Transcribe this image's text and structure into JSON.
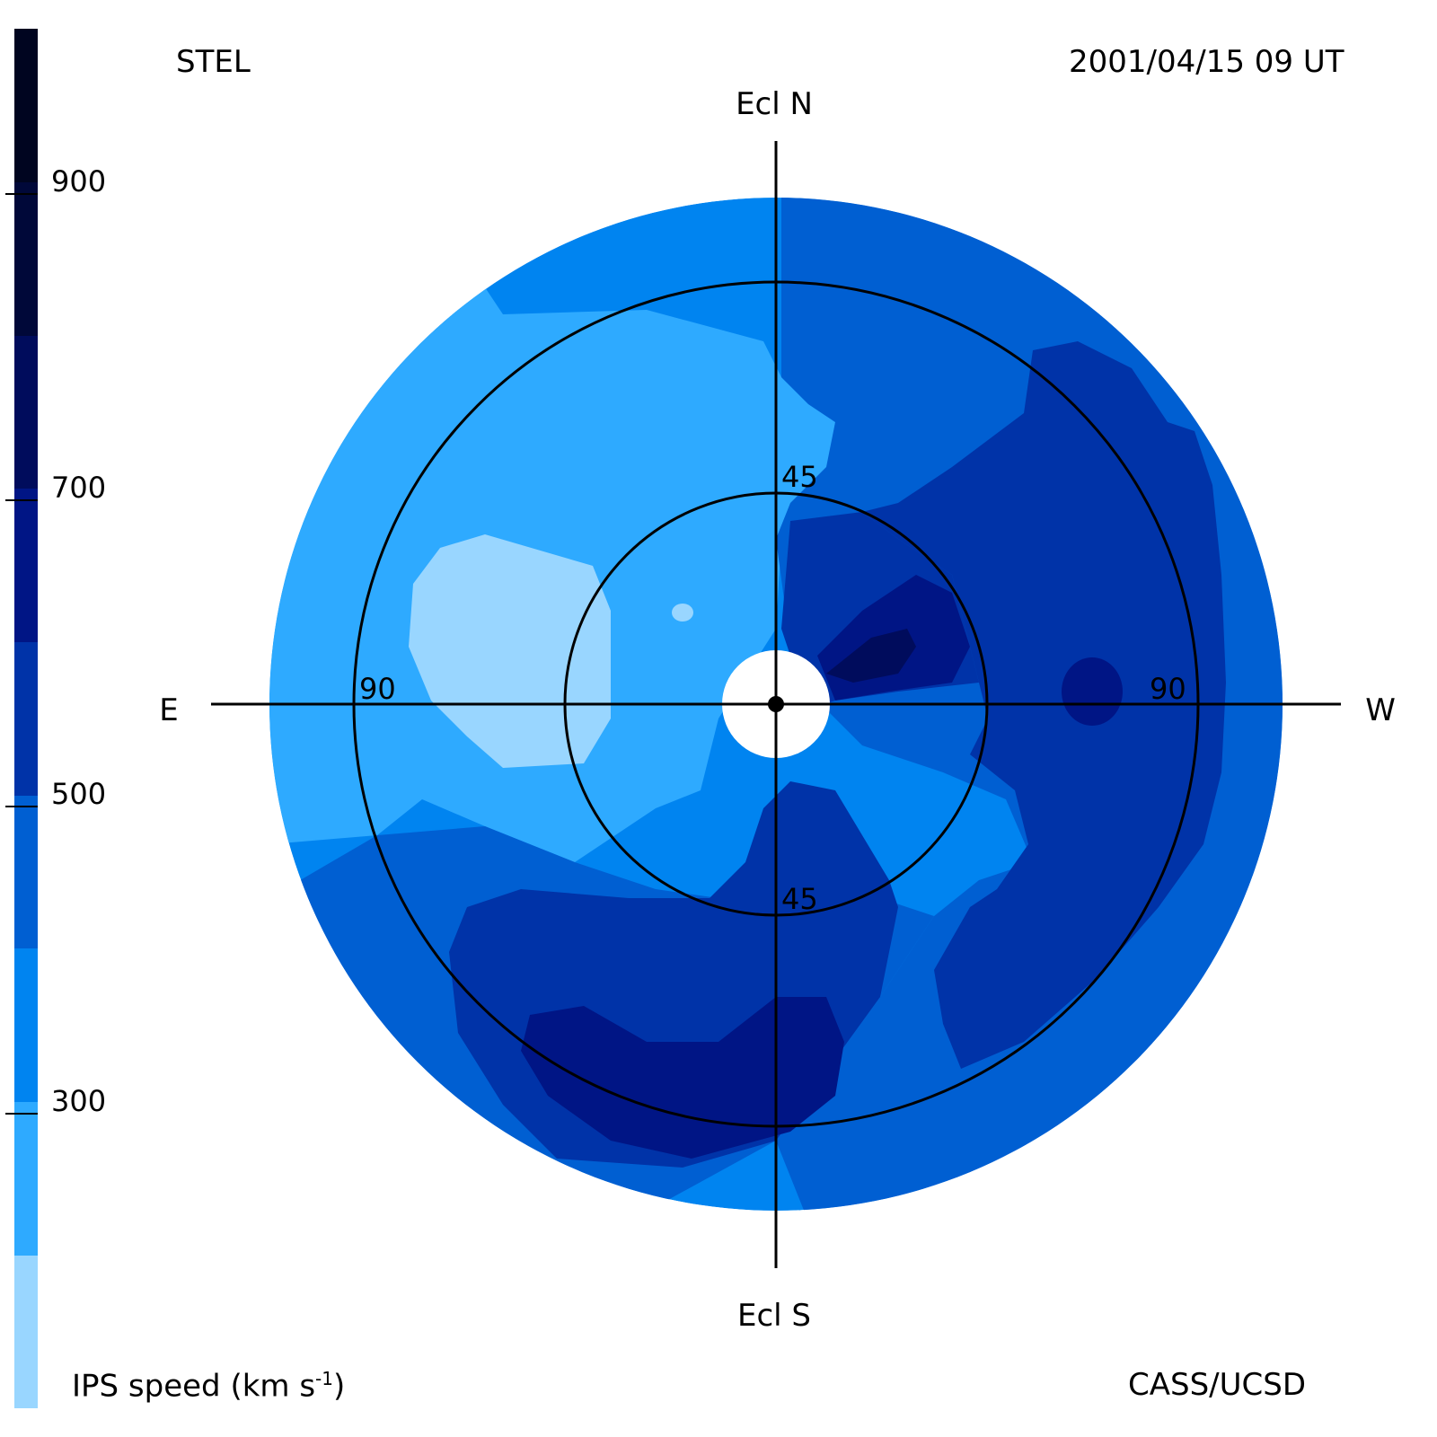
{
  "header": {
    "observatory": "STEL",
    "timestamp": "2001/04/15 09 UT"
  },
  "footer": {
    "colorbar_title": "IPS speed (km s",
    "colorbar_title_sup": "-1",
    "colorbar_title_end": ")",
    "credit": "CASS/UCSD"
  },
  "axes": {
    "north": "Ecl N",
    "south": "Ecl S",
    "east": "E",
    "west": "W"
  },
  "rings": {
    "inner_top": "45",
    "inner_bottom": "45",
    "outer_left": "90",
    "outer_right": "90"
  },
  "colorbar": {
    "min": 100,
    "max": 1000,
    "ticks": [
      {
        "value": 300,
        "label": "300"
      },
      {
        "value": 500,
        "label": "500"
      },
      {
        "value": 700,
        "label": "700"
      },
      {
        "value": 900,
        "label": "900"
      }
    ],
    "levels": [
      {
        "from": 100,
        "to": 200,
        "color": "#99d6ff"
      },
      {
        "from": 200,
        "to": 300,
        "color": "#2eaaff"
      },
      {
        "from": 300,
        "to": 400,
        "color": "#0084f0"
      },
      {
        "from": 400,
        "to": 500,
        "color": "#005fd2"
      },
      {
        "from": 500,
        "to": 600,
        "color": "#0033a8"
      },
      {
        "from": 600,
        "to": 700,
        "color": "#001585"
      },
      {
        "from": 700,
        "to": 800,
        "color": "#000c5c"
      },
      {
        "from": 800,
        "to": 900,
        "color": "#000839"
      },
      {
        "from": 900,
        "to": 1000,
        "color": "#000520"
      }
    ]
  },
  "colors": {
    "background": "#ffffff",
    "lines": "#000000"
  }
}
